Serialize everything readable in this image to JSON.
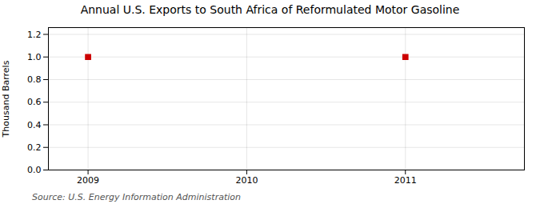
{
  "chart_data": {
    "type": "scatter",
    "title": "Annual U.S. Exports to South Africa of Reformulated Motor Gasoline",
    "ylabel": "Thousand Barrels",
    "source": "Source: U.S. Energy Information Administration",
    "x": [
      2009,
      2011
    ],
    "values": [
      1.0,
      1.0
    ],
    "color": "#cc0000",
    "marker": "square",
    "xlim": [
      2008.75,
      2011.75
    ],
    "xticks": [
      2009,
      2010,
      2011
    ],
    "ylim": [
      0.0,
      1.26
    ],
    "yticks": [
      {
        "value": 0,
        "label": "0.0"
      },
      0.2,
      0.4,
      0.6,
      0.8,
      {
        "value": 1,
        "label": "1.0"
      },
      1.2
    ],
    "grid": true
  }
}
